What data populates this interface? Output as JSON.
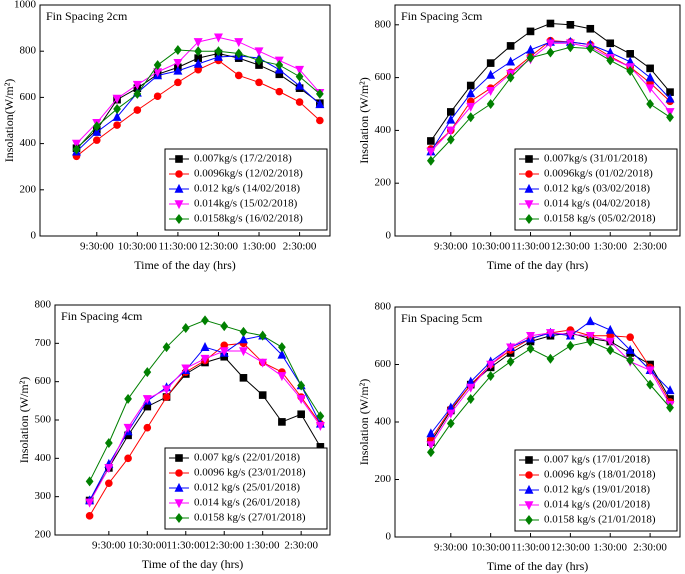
{
  "chart_data": [
    {
      "type": "line",
      "title": "Fin Spacing 2cm",
      "x_label": "Time of the day (hrs)",
      "y_label": "Insolation(W/m²)",
      "x": [
        9,
        9.5,
        10,
        10.5,
        11,
        11.5,
        12,
        12.5,
        13,
        13.5,
        14,
        14.5,
        15
      ],
      "xlim": [
        8.1,
        15.25
      ],
      "xticks": [
        {
          "value": 9.5,
          "label": "9:30:00"
        },
        {
          "value": 10.5,
          "label": "10:30:00"
        },
        {
          "value": 11.5,
          "label": "11:30:00"
        },
        {
          "value": 12.5,
          "label": "12:30:00"
        },
        {
          "value": 13.5,
          "label": "1:30:00"
        },
        {
          "value": 14.5,
          "label": "2:30:00"
        }
      ],
      "ylim": [
        0,
        1000
      ],
      "yticks": [
        0,
        200,
        400,
        600,
        800,
        1000
      ],
      "legend": "lower right",
      "series": [
        {
          "name": "0.007kg/s (17/2/2018)",
          "color": "#000000",
          "marker": "square",
          "values": [
            380,
            460,
            590,
            640,
            700,
            730,
            770,
            790,
            770,
            740,
            700,
            640,
            575
          ]
        },
        {
          "name": "0.0096kg/s (12/02/2018)",
          "color": "#ff0000",
          "marker": "circle",
          "values": [
            345,
            415,
            480,
            545,
            605,
            665,
            720,
            760,
            695,
            665,
            625,
            580,
            500
          ]
        },
        {
          "name": "0.012 kg/s (14/02/2018)",
          "color": "#0000ff",
          "marker": "triangle",
          "values": [
            365,
            450,
            515,
            620,
            695,
            715,
            745,
            775,
            780,
            770,
            720,
            650,
            570
          ]
        },
        {
          "name": "0.014kg/s (15/02/2018)",
          "color": "#ff00ff",
          "marker": "triangle-down",
          "values": [
            400,
            490,
            595,
            655,
            710,
            750,
            840,
            860,
            840,
            800,
            760,
            720,
            620
          ]
        },
        {
          "name": "0.0158kg/s (16/02/2018)",
          "color": "#008000",
          "marker": "diamond",
          "values": [
            375,
            475,
            550,
            615,
            740,
            805,
            800,
            800,
            790,
            760,
            740,
            690,
            615
          ]
        }
      ]
    },
    {
      "type": "line",
      "title": "Fin Spacing 3cm",
      "x_label": "Time of the day (hrs)",
      "y_label": "Insolation (W/m²)",
      "x": [
        9,
        9.5,
        10,
        10.5,
        11,
        11.5,
        12,
        12.5,
        13,
        13.5,
        14,
        14.5,
        15
      ],
      "xlim": [
        8.1,
        15.25
      ],
      "xticks": [
        {
          "value": 9.5,
          "label": "9:30:00"
        },
        {
          "value": 10.5,
          "label": "10:30:00"
        },
        {
          "value": 11.5,
          "label": "11:30:00"
        },
        {
          "value": 12.5,
          "label": "12:30:00"
        },
        {
          "value": 13.5,
          "label": "1:30:00"
        },
        {
          "value": 14.5,
          "label": "2:30:00"
        }
      ],
      "ylim": [
        0,
        875
      ],
      "yticks": [
        0,
        200,
        400,
        600,
        800
      ],
      "legend": "lower right",
      "series": [
        {
          "name": "0.007kg/s (31/01/2018)",
          "color": "#000000",
          "marker": "square",
          "values": [
            360,
            470,
            570,
            655,
            720,
            775,
            805,
            800,
            785,
            730,
            690,
            635,
            545
          ]
        },
        {
          "name": "0.0096kg/s (01/02/2018)",
          "color": "#ff0000",
          "marker": "circle",
          "values": [
            330,
            400,
            510,
            560,
            620,
            680,
            740,
            735,
            725,
            680,
            640,
            580,
            510
          ]
        },
        {
          "name": "0.012 kg/s (03/02/2018)",
          "color": "#0000ff",
          "marker": "triangle",
          "values": [
            320,
            440,
            540,
            610,
            660,
            705,
            735,
            735,
            725,
            695,
            660,
            600,
            520
          ]
        },
        {
          "name": "0.014 kg/s (04/02/2018)",
          "color": "#ff00ff",
          "marker": "triangle-down",
          "values": [
            320,
            400,
            490,
            550,
            615,
            670,
            730,
            730,
            715,
            675,
            640,
            560,
            470
          ]
        },
        {
          "name": "0.0158 kg/s (05/02/2018)",
          "color": "#008000",
          "marker": "diamond",
          "values": [
            285,
            365,
            450,
            500,
            600,
            675,
            695,
            715,
            710,
            665,
            625,
            500,
            450
          ]
        }
      ]
    },
    {
      "type": "line",
      "title": "Fin Spacing 4cm",
      "x_label": "Time of the day (hrs)",
      "y_label": "Insolation (W/m²)",
      "x": [
        9,
        9.5,
        10,
        10.5,
        11,
        11.5,
        12,
        12.5,
        13,
        13.5,
        14,
        14.5,
        15
      ],
      "xlim": [
        8.1,
        15.25
      ],
      "xticks": [
        {
          "value": 9.5,
          "label": "9:30:00"
        },
        {
          "value": 10.5,
          "label": "10:30:00"
        },
        {
          "value": 11.5,
          "label": "11:30:00"
        },
        {
          "value": 12.5,
          "label": "12:30:00"
        },
        {
          "value": 13.5,
          "label": "1:30:00"
        },
        {
          "value": 14.5,
          "label": "2:30:00"
        }
      ],
      "ylim": [
        200,
        800
      ],
      "yticks": [
        200,
        300,
        400,
        500,
        600,
        700,
        800
      ],
      "legend": "lower right",
      "series": [
        {
          "name": "0.007 kg/s (22/01/2018)",
          "color": "#000000",
          "marker": "square",
          "values": [
            290,
            375,
            460,
            535,
            560,
            620,
            650,
            665,
            610,
            565,
            495,
            515,
            430
          ]
        },
        {
          "name": "0.0096 kg/s (23/01/2018)",
          "color": "#ff0000",
          "marker": "circle",
          "values": [
            250,
            335,
            400,
            480,
            560,
            625,
            655,
            695,
            700,
            650,
            625,
            560,
            490
          ]
        },
        {
          "name": "0.012 kg/s (25/01/2018)",
          "color": "#0000ff",
          "marker": "triangle",
          "values": [
            290,
            385,
            470,
            550,
            585,
            630,
            690,
            675,
            710,
            720,
            670,
            590,
            490
          ]
        },
        {
          "name": "0.014 kg/s (26/01/2018)",
          "color": "#ff00ff",
          "marker": "triangle-down",
          "values": [
            285,
            375,
            480,
            555,
            580,
            635,
            660,
            680,
            680,
            650,
            615,
            555,
            485
          ]
        },
        {
          "name": "0.0158 kg/s (27/01/2018)",
          "color": "#008000",
          "marker": "diamond",
          "values": [
            340,
            440,
            555,
            625,
            690,
            740,
            760,
            745,
            730,
            720,
            690,
            590,
            510
          ]
        }
      ]
    },
    {
      "type": "line",
      "title": "Fin Spacing 5cm",
      "x_label": "Time of the day (hrs)",
      "y_label": "Insolation (W/m²)",
      "x": [
        9,
        9.5,
        10,
        10.5,
        11,
        11.5,
        12,
        12.5,
        13,
        13.5,
        14,
        14.5,
        15
      ],
      "xlim": [
        8.1,
        15.25
      ],
      "xticks": [
        {
          "value": 9.5,
          "label": "9:30:00"
        },
        {
          "value": 10.5,
          "label": "10:30:00"
        },
        {
          "value": 11.5,
          "label": "11:30:00"
        },
        {
          "value": 12.5,
          "label": "12:30:00"
        },
        {
          "value": 13.5,
          "label": "1:30:00"
        },
        {
          "value": 14.5,
          "label": "2:30:00"
        }
      ],
      "ylim": [
        0,
        800
      ],
      "yticks": [
        0,
        200,
        400,
        600,
        800
      ],
      "legend": "lower right",
      "series": [
        {
          "name": "0.007 kg/s (17/01/2018)",
          "color": "#000000",
          "marker": "square",
          "values": [
            330,
            440,
            530,
            590,
            640,
            680,
            700,
            710,
            690,
            680,
            640,
            600,
            480
          ]
        },
        {
          "name": "0.0096 kg/s (18/01/2018)",
          "color": "#ff0000",
          "marker": "circle",
          "values": [
            340,
            445,
            530,
            600,
            650,
            690,
            710,
            720,
            700,
            700,
            695,
            590,
            470
          ]
        },
        {
          "name": "0.012 kg/s (19/01/2018)",
          "color": "#0000ff",
          "marker": "triangle",
          "values": [
            360,
            450,
            540,
            610,
            660,
            690,
            710,
            700,
            750,
            720,
            650,
            580,
            510
          ]
        },
        {
          "name": "0.014 kg/s (20/01/2018)",
          "color": "#ff00ff",
          "marker": "triangle-down",
          "values": [
            320,
            430,
            520,
            600,
            660,
            700,
            710,
            705,
            700,
            680,
            610,
            580,
            460
          ]
        },
        {
          "name": "0.0158 kg/s (21/01/2018)",
          "color": "#008000",
          "marker": "diamond",
          "values": [
            295,
            395,
            480,
            560,
            610,
            655,
            620,
            665,
            680,
            650,
            615,
            530,
            450
          ]
        }
      ]
    }
  ]
}
